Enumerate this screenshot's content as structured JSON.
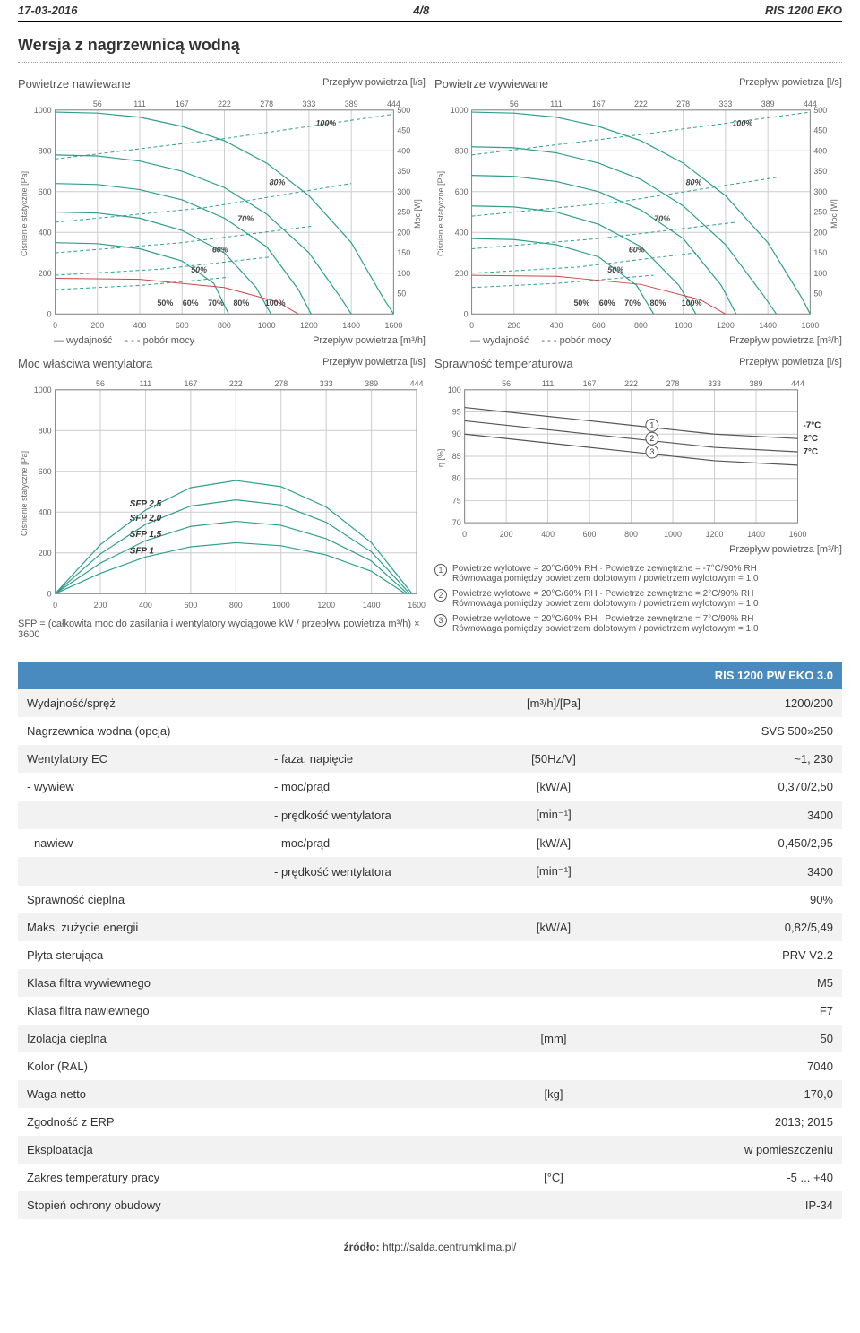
{
  "header": {
    "date": "17-03-2016",
    "page": "4/8",
    "model": "RIS 1200 EKO"
  },
  "section_title": "Wersja z nagrzewnicą wodną",
  "chart_common": {
    "top_axis_label": "Przepływ powietrza [l/s]",
    "bottom_axis_label": "Przepływ powietrza [m³/h]",
    "y_left_label": "Ciśnienie statyczne [Pa]",
    "y_right_label": "Moc [W]",
    "top_ticks": [
      56,
      111,
      167,
      222,
      278,
      333,
      389,
      444
    ],
    "x_ticks": [
      0,
      200,
      400,
      600,
      800,
      1000,
      1200,
      1400,
      1600
    ],
    "y_ticks": [
      0,
      200,
      400,
      600,
      800,
      1000
    ],
    "y2_ticks": [
      50,
      100,
      150,
      200,
      250,
      300,
      350,
      400,
      450,
      500
    ],
    "grid_color": "#cccccc",
    "axis_color": "#888888",
    "bg": "#ffffff"
  },
  "chart1": {
    "title": "Powietrze nawiewane",
    "legend": {
      "solid": "wydajność",
      "dashed": "pobór mocy"
    },
    "curve_labels": [
      "50%",
      "60%",
      "70%",
      "80%",
      "100%"
    ],
    "solid_color": "#2e9e8f",
    "dashed_color": "#2e9e8f",
    "red_color": "#c44",
    "series_solid": {
      "50": [
        [
          0,
          350
        ],
        [
          200,
          345
        ],
        [
          400,
          320
        ],
        [
          600,
          260
        ],
        [
          750,
          150
        ],
        [
          820,
          0
        ]
      ],
      "60": [
        [
          0,
          500
        ],
        [
          200,
          495
        ],
        [
          400,
          470
        ],
        [
          600,
          410
        ],
        [
          800,
          300
        ],
        [
          950,
          130
        ],
        [
          1020,
          0
        ]
      ],
      "70": [
        [
          0,
          640
        ],
        [
          200,
          635
        ],
        [
          400,
          610
        ],
        [
          600,
          560
        ],
        [
          800,
          470
        ],
        [
          1000,
          330
        ],
        [
          1150,
          120
        ],
        [
          1210,
          0
        ]
      ],
      "80": [
        [
          0,
          780
        ],
        [
          200,
          775
        ],
        [
          400,
          750
        ],
        [
          600,
          700
        ],
        [
          800,
          620
        ],
        [
          1000,
          490
        ],
        [
          1200,
          300
        ],
        [
          1350,
          80
        ],
        [
          1400,
          0
        ]
      ],
      "100": [
        [
          0,
          990
        ],
        [
          200,
          985
        ],
        [
          400,
          965
        ],
        [
          600,
          920
        ],
        [
          800,
          850
        ],
        [
          1000,
          740
        ],
        [
          1200,
          580
        ],
        [
          1400,
          350
        ],
        [
          1550,
          80
        ],
        [
          1600,
          0
        ]
      ]
    },
    "series_dashed": {
      "50": [
        [
          0,
          60
        ],
        [
          400,
          70
        ],
        [
          820,
          90
        ]
      ],
      "60": [
        [
          0,
          95
        ],
        [
          500,
          110
        ],
        [
          1020,
          140
        ]
      ],
      "70": [
        [
          0,
          150
        ],
        [
          600,
          175
        ],
        [
          1210,
          215
        ]
      ],
      "80": [
        [
          0,
          225
        ],
        [
          700,
          260
        ],
        [
          1400,
          320
        ]
      ],
      "100": [
        [
          0,
          380
        ],
        [
          800,
          430
        ],
        [
          1600,
          490
        ]
      ]
    },
    "red_line": [
      [
        0,
        175
      ],
      [
        400,
        170
      ],
      [
        800,
        130
      ],
      [
        1050,
        60
      ],
      [
        1150,
        0
      ]
    ]
  },
  "chart2": {
    "title": "Powietrze wywiewane",
    "legend": {
      "solid": "wydajność",
      "dashed": "pobór mocy"
    },
    "curve_labels": [
      "50%",
      "60%",
      "70%",
      "80%",
      "100%"
    ],
    "solid_color": "#2e9e8f",
    "series_solid": {
      "50": [
        [
          0,
          370
        ],
        [
          200,
          365
        ],
        [
          400,
          340
        ],
        [
          600,
          280
        ],
        [
          780,
          140
        ],
        [
          860,
          0
        ]
      ],
      "60": [
        [
          0,
          530
        ],
        [
          200,
          525
        ],
        [
          400,
          500
        ],
        [
          600,
          440
        ],
        [
          800,
          330
        ],
        [
          980,
          140
        ],
        [
          1060,
          0
        ]
      ],
      "70": [
        [
          0,
          680
        ],
        [
          200,
          675
        ],
        [
          400,
          650
        ],
        [
          600,
          600
        ],
        [
          800,
          510
        ],
        [
          1000,
          370
        ],
        [
          1180,
          140
        ],
        [
          1250,
          0
        ]
      ],
      "80": [
        [
          0,
          820
        ],
        [
          200,
          815
        ],
        [
          400,
          790
        ],
        [
          600,
          740
        ],
        [
          800,
          660
        ],
        [
          1000,
          530
        ],
        [
          1200,
          340
        ],
        [
          1380,
          90
        ],
        [
          1440,
          0
        ]
      ],
      "100": [
        [
          0,
          990
        ],
        [
          200,
          985
        ],
        [
          400,
          965
        ],
        [
          600,
          920
        ],
        [
          800,
          850
        ],
        [
          1000,
          740
        ],
        [
          1200,
          580
        ],
        [
          1400,
          350
        ],
        [
          1560,
          80
        ],
        [
          1600,
          0
        ]
      ]
    },
    "series_dashed": {
      "50": [
        [
          0,
          65
        ],
        [
          400,
          75
        ],
        [
          860,
          95
        ]
      ],
      "60": [
        [
          0,
          100
        ],
        [
          500,
          115
        ],
        [
          1060,
          150
        ]
      ],
      "70": [
        [
          0,
          160
        ],
        [
          600,
          185
        ],
        [
          1250,
          225
        ]
      ],
      "80": [
        [
          0,
          240
        ],
        [
          700,
          275
        ],
        [
          1440,
          335
        ]
      ],
      "100": [
        [
          0,
          390
        ],
        [
          800,
          440
        ],
        [
          1600,
          495
        ]
      ]
    },
    "red_line": [
      [
        0,
        190
      ],
      [
        400,
        185
      ],
      [
        800,
        145
      ],
      [
        1080,
        70
      ],
      [
        1200,
        0
      ]
    ]
  },
  "chart3": {
    "title": "Moc właściwa wentylatora",
    "sfp_labels": [
      "SFP 1",
      "SFP 1,5",
      "SFP 2,0",
      "SFP 2,5"
    ],
    "sfp_color": "#2e9e8f",
    "series": {
      "SFP 1": [
        [
          0,
          0
        ],
        [
          200,
          100
        ],
        [
          400,
          180
        ],
        [
          600,
          230
        ],
        [
          800,
          250
        ],
        [
          1000,
          235
        ],
        [
          1200,
          190
        ],
        [
          1400,
          110
        ],
        [
          1550,
          0
        ]
      ],
      "SFP 1,5": [
        [
          0,
          0
        ],
        [
          200,
          150
        ],
        [
          400,
          260
        ],
        [
          600,
          330
        ],
        [
          800,
          355
        ],
        [
          1000,
          335
        ],
        [
          1200,
          270
        ],
        [
          1400,
          160
        ],
        [
          1560,
          0
        ]
      ],
      "SFP 2,0": [
        [
          0,
          0
        ],
        [
          200,
          195
        ],
        [
          400,
          340
        ],
        [
          600,
          430
        ],
        [
          800,
          460
        ],
        [
          1000,
          435
        ],
        [
          1200,
          350
        ],
        [
          1400,
          205
        ],
        [
          1570,
          0
        ]
      ],
      "SFP 2,5": [
        [
          0,
          0
        ],
        [
          200,
          240
        ],
        [
          400,
          410
        ],
        [
          600,
          520
        ],
        [
          800,
          555
        ],
        [
          1000,
          525
        ],
        [
          1200,
          425
        ],
        [
          1400,
          250
        ],
        [
          1580,
          0
        ]
      ]
    },
    "formula": "SFP = (całkowita moc do zasilania i wentylatory wyciągowe kW / przepływ powietrza m³/h) × 3600"
  },
  "chart4": {
    "title": "Sprawność temperaturowa",
    "y_label": "η [%]",
    "y_ticks": [
      70,
      75,
      80,
      85,
      90,
      95,
      100
    ],
    "line_color": "#555",
    "labels": [
      "-7°C",
      "2°C",
      "7°C"
    ],
    "series": {
      "1": [
        [
          0,
          96
        ],
        [
          400,
          94
        ],
        [
          800,
          92
        ],
        [
          1200,
          90
        ],
        [
          1600,
          89
        ]
      ],
      "2": [
        [
          0,
          93
        ],
        [
          400,
          91
        ],
        [
          800,
          89
        ],
        [
          1200,
          87
        ],
        [
          1600,
          86
        ]
      ],
      "3": [
        [
          0,
          90
        ],
        [
          400,
          88
        ],
        [
          800,
          86
        ],
        [
          1200,
          84
        ],
        [
          1600,
          83
        ]
      ]
    },
    "notes": [
      "Powietrze wylotowe = 20°C/60% RH · Powietrze zewnętrzne = -7°C/90% RH\nRównowaga pomiędzy powietrzem dolotowym / powietrzem wylotowym = 1,0",
      "Powietrze wylotowe = 20°C/60% RH · Powietrze zewnętrzne = 2°C/90% RH\nRównowaga pomiędzy powietrzem dolotowym / powietrzem wylotowym = 1,0",
      "Powietrze wylotowe = 20°C/60% RH · Powietrze zewnętrzne = 7°C/90% RH\nRównowaga pomiędzy powietrzem dolotowym / powietrzem wylotowym = 1,0"
    ]
  },
  "spec_table": {
    "header_value": "RIS 1200 PW EKO 3.0",
    "rows": [
      {
        "c1": "Wydajność/spręż",
        "c2": "",
        "c3": "[m³/h]/[Pa]",
        "c4": "1200/200"
      },
      {
        "c1": "Nagrzewnica wodna (opcja)",
        "c2": "",
        "c3": "",
        "c4": "SVS 500»250"
      },
      {
        "c1": "Wentylatory EC",
        "c2": "- faza, napięcie",
        "c3": "[50Hz/V]",
        "c4": "~1, 230"
      },
      {
        "c1": "- wywiew",
        "c2": "- moc/prąd",
        "c3": "[kW/A]",
        "c4": "0,370/2,50"
      },
      {
        "c1": "",
        "c2": "- prędkość wentylatora",
        "c3": "[min⁻¹]",
        "c4": "3400"
      },
      {
        "c1": "- nawiew",
        "c2": "- moc/prąd",
        "c3": "[kW/A]",
        "c4": "0,450/2,95"
      },
      {
        "c1": "",
        "c2": "- prędkość wentylatora",
        "c3": "[min⁻¹]",
        "c4": "3400"
      },
      {
        "c1": "Sprawność cieplna",
        "c2": "",
        "c3": "",
        "c4": "90%"
      },
      {
        "c1": "Maks. zużycie energii",
        "c2": "",
        "c3": "[kW/A]",
        "c4": "0,82/5,49"
      },
      {
        "c1": "Płyta sterująca",
        "c2": "",
        "c3": "",
        "c4": "PRV V2.2"
      },
      {
        "c1": "Klasa filtra wywiewnego",
        "c2": "",
        "c3": "",
        "c4": "M5"
      },
      {
        "c1": "Klasa filtra nawiewnego",
        "c2": "",
        "c3": "",
        "c4": "F7"
      },
      {
        "c1": "Izolacja cieplna",
        "c2": "",
        "c3": "[mm]",
        "c4": "50"
      },
      {
        "c1": "Kolor (RAL)",
        "c2": "",
        "c3": "",
        "c4": "7040"
      },
      {
        "c1": "Waga netto",
        "c2": "",
        "c3": "[kg]",
        "c4": "170,0"
      },
      {
        "c1": "Zgodność z ERP",
        "c2": "",
        "c3": "",
        "c4": "2013; 2015"
      },
      {
        "c1": "Eksploatacja",
        "c2": "",
        "c3": "",
        "c4": "w pomieszczeniu"
      },
      {
        "c1": "Zakres temperatury pracy",
        "c2": "",
        "c3": "[°C]",
        "c4": "-5 ... +40"
      },
      {
        "c1": "Stopień ochrony obudowy",
        "c2": "",
        "c3": "",
        "c4": "IP-34"
      }
    ]
  },
  "footer": {
    "label": "źródło:",
    "url": "http://salda.centrumklima.pl/"
  }
}
